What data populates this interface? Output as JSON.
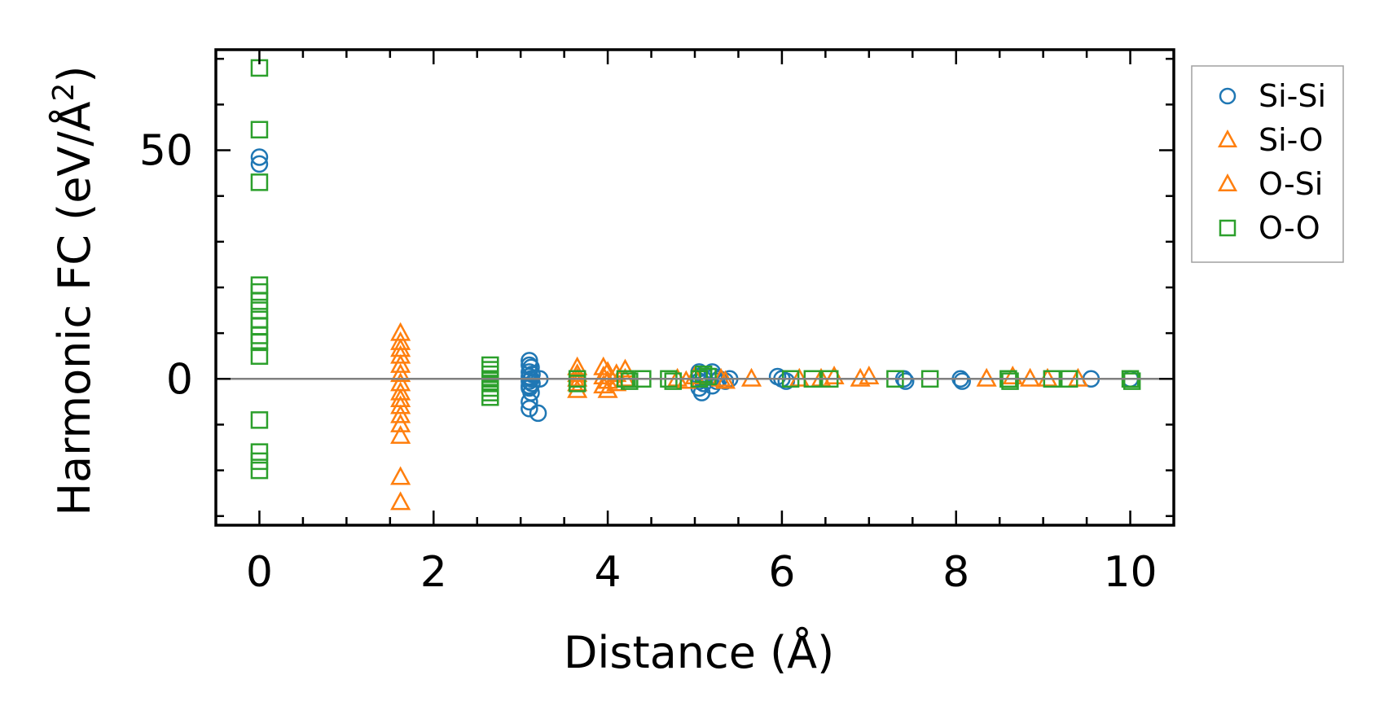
{
  "chart_data": {
    "type": "scatter",
    "xlabel": "Distance (Å)",
    "ylabel": "Harmonic FC (eV/Å",
    "ylabel_sup": "2",
    "ylabel_end": ")",
    "xlim": [
      -0.5,
      10.5
    ],
    "ylim": [
      -32,
      72
    ],
    "xticks": [
      0,
      2,
      4,
      6,
      8,
      10
    ],
    "xtick_labels": [
      "0",
      "2",
      "4",
      "6",
      "8",
      "10"
    ],
    "yticks": [
      0,
      50
    ],
    "ytick_labels": [
      "0",
      "50"
    ],
    "minor_xtick_step": 0.5,
    "minor_ytick_step": 10,
    "zero_line": true,
    "grid": false,
    "legend_position": "outside-right-top",
    "series": [
      {
        "name": "Si-Si",
        "marker": "circle",
        "color": "#1f77b4",
        "points": [
          [
            0,
            48.5
          ],
          [
            0,
            47
          ],
          [
            3.1,
            4
          ],
          [
            3.1,
            3
          ],
          [
            3.12,
            2.5
          ],
          [
            3.1,
            1.5
          ],
          [
            3.13,
            1
          ],
          [
            3.1,
            0.5
          ],
          [
            3.12,
            0
          ],
          [
            3.1,
            -0.5
          ],
          [
            3.13,
            -1
          ],
          [
            3.1,
            -1.5
          ],
          [
            3.1,
            -2
          ],
          [
            3.12,
            -3
          ],
          [
            3.1,
            -5
          ],
          [
            3.1,
            -6.5
          ],
          [
            3.2,
            -7.5
          ],
          [
            3.22,
            0
          ],
          [
            5.05,
            1.5
          ],
          [
            5.1,
            1
          ],
          [
            5.05,
            0.5
          ],
          [
            5.1,
            0
          ],
          [
            5.05,
            -0.5
          ],
          [
            5.1,
            -1
          ],
          [
            5.05,
            -2
          ],
          [
            5.08,
            -3
          ],
          [
            5.2,
            1.5
          ],
          [
            5.22,
            0.5
          ],
          [
            5.25,
            -0.5
          ],
          [
            5.2,
            -1.5
          ],
          [
            5.28,
            0
          ],
          [
            5.35,
            -0.5
          ],
          [
            5.4,
            0
          ],
          [
            5.95,
            0.5
          ],
          [
            6.0,
            0
          ],
          [
            6.05,
            -0.5
          ],
          [
            7.4,
            0
          ],
          [
            7.42,
            -0.5
          ],
          [
            8.05,
            0
          ],
          [
            8.07,
            -0.5
          ],
          [
            9.55,
            0
          ],
          [
            10.0,
            0
          ]
        ]
      },
      {
        "name": "Si-O",
        "marker": "triangle",
        "color": "#ff7f0e",
        "points": [
          [
            1.62,
            10
          ],
          [
            1.62,
            8
          ],
          [
            1.62,
            6.5
          ],
          [
            1.62,
            5
          ],
          [
            1.62,
            3
          ],
          [
            1.62,
            1
          ],
          [
            1.62,
            -1
          ],
          [
            1.62,
            -3
          ],
          [
            1.62,
            -4.5
          ],
          [
            1.62,
            -6
          ],
          [
            1.62,
            -8
          ],
          [
            1.62,
            -10
          ],
          [
            1.62,
            -12.5
          ],
          [
            1.62,
            -21.5
          ],
          [
            1.62,
            -27
          ],
          [
            3.65,
            2.5
          ],
          [
            3.65,
            1
          ],
          [
            3.65,
            0
          ],
          [
            3.65,
            -1
          ],
          [
            3.65,
            -2.5
          ],
          [
            3.95,
            2.5
          ],
          [
            4.0,
            1.5
          ],
          [
            3.95,
            0.5
          ],
          [
            4.0,
            -0.5
          ],
          [
            3.95,
            -1.5
          ],
          [
            4.0,
            -2.5
          ],
          [
            4.1,
            1
          ],
          [
            4.1,
            -1
          ],
          [
            4.2,
            2
          ],
          [
            4.2,
            0
          ],
          [
            4.8,
            0
          ],
          [
            4.9,
            -0.5
          ],
          [
            5.0,
            0.5
          ],
          [
            5.3,
            0
          ],
          [
            5.35,
            -0.5
          ],
          [
            5.65,
            0
          ],
          [
            6.2,
            0
          ],
          [
            6.45,
            0
          ],
          [
            6.6,
            0.5
          ],
          [
            6.9,
            0
          ],
          [
            7.0,
            0.5
          ],
          [
            8.35,
            0
          ],
          [
            8.65,
            0.5
          ],
          [
            8.85,
            0
          ],
          [
            9.05,
            0
          ],
          [
            9.4,
            0
          ]
        ]
      },
      {
        "name": "O-Si",
        "marker": "triangle",
        "color": "#ff7f0e",
        "points": []
      },
      {
        "name": "O-O",
        "marker": "square",
        "color": "#2ca02c",
        "points": [
          [
            0,
            68
          ],
          [
            0,
            54.5
          ],
          [
            0,
            43
          ],
          [
            0,
            20.5
          ],
          [
            0,
            19
          ],
          [
            0,
            17
          ],
          [
            0,
            15
          ],
          [
            0,
            13
          ],
          [
            0,
            11.5
          ],
          [
            0,
            9.5
          ],
          [
            0,
            8
          ],
          [
            0,
            5
          ],
          [
            0,
            -9
          ],
          [
            0,
            -16
          ],
          [
            0,
            -18
          ],
          [
            0,
            -20
          ],
          [
            2.65,
            3
          ],
          [
            2.65,
            2
          ],
          [
            2.65,
            1
          ],
          [
            2.65,
            0
          ],
          [
            2.65,
            -1
          ],
          [
            2.65,
            -2
          ],
          [
            2.65,
            -3
          ],
          [
            2.65,
            -4
          ],
          [
            3.65,
            0
          ],
          [
            3.65,
            -1
          ],
          [
            4.2,
            0
          ],
          [
            4.25,
            -0.5
          ],
          [
            4.4,
            0
          ],
          [
            4.7,
            0
          ],
          [
            4.75,
            -0.5
          ],
          [
            5.05,
            0
          ],
          [
            5.1,
            1
          ],
          [
            5.15,
            0.5
          ],
          [
            6.1,
            0
          ],
          [
            6.35,
            0
          ],
          [
            6.55,
            0
          ],
          [
            7.3,
            0
          ],
          [
            7.7,
            0
          ],
          [
            8.6,
            0
          ],
          [
            8.62,
            -0.5
          ],
          [
            9.1,
            0
          ],
          [
            9.3,
            0
          ],
          [
            10.0,
            0
          ],
          [
            10.02,
            -0.5
          ]
        ]
      }
    ]
  }
}
